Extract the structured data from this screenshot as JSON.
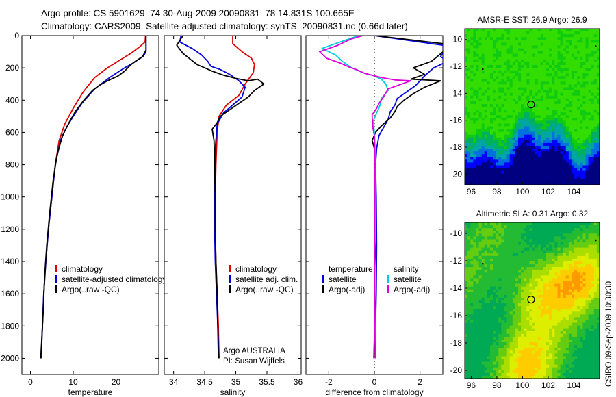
{
  "header": {
    "line1": "Argo profile: CS 5901629_74 30-Aug-2009 20090831_78 14.831S 100.665E",
    "line2": "Climatology: CARS2009. Satellite-adjusted climatology: synTS_20090831.nc (0.66d later)"
  },
  "side_label": "CSIRO 09-Sep-2009 10:30:30",
  "chart_data": [
    {
      "id": "temperature",
      "type": "line",
      "xlabel": "temperature",
      "xlim": [
        -2,
        30
      ],
      "ylim": [
        2100,
        0
      ],
      "xticks": [
        0,
        10,
        20
      ],
      "yticks": [
        0,
        200,
        400,
        600,
        800,
        1000,
        1200,
        1400,
        1600,
        1800,
        2000
      ],
      "legend": [
        "climatology",
        "satellite-adjusted climatology",
        "Argo(..raw -QC)"
      ],
      "series": [
        {
          "name": "climatology",
          "color": "#dd0000",
          "points": [
            [
              26.9,
              0
            ],
            [
              26.8,
              40
            ],
            [
              25.5,
              70
            ],
            [
              23.5,
              110
            ],
            [
              21,
              150
            ],
            [
              18,
              200
            ],
            [
              15,
              260
            ],
            [
              12.3,
              350
            ],
            [
              10,
              450
            ],
            [
              8,
              550
            ],
            [
              6.7,
              650
            ],
            [
              5.8,
              800
            ],
            [
              5,
              1000
            ],
            [
              4.2,
              1200
            ],
            [
              3.6,
              1400
            ],
            [
              3.1,
              1600
            ],
            [
              2.8,
              1800
            ],
            [
              2.5,
              2000
            ]
          ]
        },
        {
          "name": "satellite-adjusted climatology",
          "color": "#0000dd",
          "points": [
            [
              27,
              0
            ],
            [
              27,
              100
            ],
            [
              26.3,
              130
            ],
            [
              24,
              170
            ],
            [
              22,
              200
            ],
            [
              18.5,
              260
            ],
            [
              15,
              330
            ],
            [
              12,
              420
            ],
            [
              10,
              500
            ],
            [
              8.4,
              570
            ],
            [
              7,
              650
            ],
            [
              5.8,
              800
            ],
            [
              5,
              1000
            ],
            [
              4.2,
              1200
            ],
            [
              3.6,
              1400
            ],
            [
              3.1,
              1600
            ],
            [
              2.8,
              1800
            ],
            [
              2.5,
              2000
            ]
          ]
        },
        {
          "name": "Argo(..raw -QC)",
          "color": "#000000",
          "points": [
            [
              27,
              0
            ],
            [
              27,
              90
            ],
            [
              26.2,
              130
            ],
            [
              24.5,
              160
            ],
            [
              23.5,
              180
            ],
            [
              22,
              220
            ],
            [
              20.5,
              250
            ],
            [
              18,
              280
            ],
            [
              16,
              310
            ],
            [
              14.5,
              340
            ],
            [
              12.5,
              400
            ],
            [
              10.5,
              470
            ],
            [
              9,
              540
            ],
            [
              7.5,
              620
            ],
            [
              6.2,
              740
            ],
            [
              5.3,
              900
            ],
            [
              4.5,
              1100
            ],
            [
              3.8,
              1300
            ],
            [
              3.3,
              1500
            ],
            [
              3,
              1700
            ],
            [
              2.6,
              1900
            ],
            [
              2.4,
              2000
            ]
          ]
        }
      ]
    },
    {
      "id": "salinity",
      "type": "line",
      "xlabel": "salinity",
      "xlim": [
        33.85,
        36.05
      ],
      "ylim": [
        2100,
        0
      ],
      "xticks": [
        34,
        34.5,
        35,
        35.5,
        36
      ],
      "xticklabels": [
        "34",
        "34.5",
        "35",
        "35.5",
        "36"
      ],
      "legend": [
        "climatology",
        "satellite adj. clim.",
        "Argo(..raw -QC)"
      ],
      "annotations": [
        "Argo AUSTRALIA",
        "PI: Susan Wijffels"
      ],
      "series": [
        {
          "name": "climatology",
          "color": "#dd0000",
          "points": [
            [
              34.95,
              0
            ],
            [
              34.95,
              50
            ],
            [
              35.1,
              100
            ],
            [
              35.25,
              140
            ],
            [
              35.3,
              180
            ],
            [
              35.28,
              230
            ],
            [
              35.15,
              300
            ],
            [
              35.05,
              370
            ],
            [
              34.85,
              430
            ],
            [
              34.73,
              500
            ],
            [
              34.7,
              600
            ],
            [
              34.68,
              800
            ],
            [
              34.67,
              1000
            ],
            [
              34.67,
              1200
            ],
            [
              34.68,
              1400
            ],
            [
              34.7,
              1600
            ],
            [
              34.72,
              1800
            ],
            [
              34.73,
              2000
            ]
          ]
        },
        {
          "name": "satellite adj. clim.",
          "color": "#0000dd",
          "points": [
            [
              34.12,
              0
            ],
            [
              34.1,
              40
            ],
            [
              34.3,
              80
            ],
            [
              34.45,
              120
            ],
            [
              34.55,
              160
            ],
            [
              34.6,
              190
            ],
            [
              34.75,
              210
            ],
            [
              34.9,
              240
            ],
            [
              35.05,
              280
            ],
            [
              35.15,
              320
            ],
            [
              35.1,
              380
            ],
            [
              34.95,
              430
            ],
            [
              34.8,
              480
            ],
            [
              34.7,
              550
            ],
            [
              34.67,
              700
            ],
            [
              34.66,
              1000
            ],
            [
              34.66,
              1200
            ],
            [
              34.67,
              1400
            ],
            [
              34.69,
              1600
            ],
            [
              34.71,
              1800
            ],
            [
              34.73,
              2000
            ]
          ]
        },
        {
          "name": "Argo(..raw -QC)",
          "color": "#000000",
          "points": [
            [
              34.15,
              0
            ],
            [
              34.05,
              60
            ],
            [
              34.15,
              110
            ],
            [
              34.28,
              150
            ],
            [
              34.38,
              180
            ],
            [
              34.5,
              200
            ],
            [
              34.62,
              220
            ],
            [
              34.8,
              245
            ],
            [
              35,
              265
            ],
            [
              35.2,
              280
            ],
            [
              35.35,
              270
            ],
            [
              35.45,
              300
            ],
            [
              35.3,
              340
            ],
            [
              35.2,
              380
            ],
            [
              35.05,
              420
            ],
            [
              34.9,
              460
            ],
            [
              34.75,
              500
            ],
            [
              34.7,
              540
            ],
            [
              34.62,
              580
            ],
            [
              34.65,
              650
            ],
            [
              34.66,
              800
            ],
            [
              34.67,
              1000
            ],
            [
              34.67,
              1200
            ],
            [
              34.68,
              1400
            ],
            [
              34.7,
              1600
            ],
            [
              34.71,
              1800
            ],
            [
              34.72,
              2000
            ]
          ]
        }
      ]
    },
    {
      "id": "difference",
      "type": "line",
      "xlabel": "difference from climatology",
      "xlim": [
        -3,
        3
      ],
      "ylim": [
        2100,
        0
      ],
      "xticks": [
        -2,
        0,
        2
      ],
      "legend": [
        "temperature",
        "satellite",
        "Argo(-adj)",
        "salinity",
        "satellite",
        "Argo(-adj)"
      ],
      "series": [
        {
          "name": "satellite",
          "group": "temperature",
          "color": "#0000dd",
          "points": [
            [
              0,
              0
            ],
            [
              3,
              60
            ],
            [
              3.1,
              90
            ],
            [
              2.9,
              130
            ],
            [
              3.2,
              160
            ],
            [
              2.6,
              200
            ],
            [
              2.2,
              250
            ],
            [
              1.8,
              310
            ],
            [
              1.3,
              360
            ],
            [
              1,
              390
            ],
            [
              0.9,
              430
            ],
            [
              0.7,
              470
            ],
            [
              0.6,
              520
            ],
            [
              0.4,
              570
            ],
            [
              0.2,
              620
            ],
            [
              0.1,
              700
            ],
            [
              0.05,
              800
            ],
            [
              0.08,
              1000
            ],
            [
              0.1,
              1300
            ],
            [
              0.08,
              1600
            ],
            [
              0.05,
              1800
            ],
            [
              0.05,
              2000
            ]
          ]
        },
        {
          "name": "Argo(-adj)",
          "group": "temperature",
          "color": "#000000",
          "points": [
            [
              0.02,
              0
            ],
            [
              3,
              50
            ],
            [
              3.1,
              90
            ],
            [
              2.5,
              160
            ],
            [
              1.7,
              200
            ],
            [
              2.2,
              240
            ],
            [
              1.6,
              270
            ],
            [
              2.9,
              280
            ],
            [
              2.2,
              320
            ],
            [
              1.7,
              360
            ],
            [
              1.3,
              400
            ],
            [
              1,
              440
            ],
            [
              0.9,
              470
            ],
            [
              0.7,
              510
            ],
            [
              0.3,
              560
            ],
            [
              0.05,
              600
            ],
            [
              -0.1,
              650
            ],
            [
              0,
              700
            ],
            [
              0.05,
              850
            ],
            [
              0.02,
              1000
            ],
            [
              0.05,
              1300
            ],
            [
              0,
              1500
            ],
            [
              0.02,
              1700
            ],
            [
              -0.02,
              2000
            ]
          ]
        },
        {
          "name": "satellite",
          "group": "salinity",
          "color": "#00ccdd",
          "points": [
            [
              -0.7,
              0
            ],
            [
              -1.5,
              40
            ],
            [
              -2.3,
              80
            ],
            [
              -1.7,
              120
            ],
            [
              -1.4,
              160
            ],
            [
              -1,
              200
            ],
            [
              -0.5,
              230
            ],
            [
              0,
              250
            ],
            [
              0.3,
              270
            ],
            [
              0.5,
              300
            ],
            [
              0.6,
              340
            ],
            [
              0.3,
              390
            ],
            [
              0.25,
              430
            ],
            [
              0.1,
              480
            ],
            [
              -0.05,
              530
            ],
            [
              0,
              600
            ],
            [
              0.05,
              800
            ],
            [
              0.03,
              1000
            ],
            [
              0.05,
              1200
            ],
            [
              0,
              1400
            ],
            [
              0.02,
              1700
            ],
            [
              0.05,
              2000
            ]
          ]
        },
        {
          "name": "Argo(-adj)",
          "group": "salinity",
          "color": "#dd00dd",
          "points": [
            [
              -0.5,
              0
            ],
            [
              -1,
              20
            ],
            [
              -1.6,
              60
            ],
            [
              -2.4,
              100
            ],
            [
              -2.1,
              140
            ],
            [
              -1.5,
              170
            ],
            [
              -1.1,
              195
            ],
            [
              -0.8,
              210
            ],
            [
              -0.4,
              235
            ],
            [
              0.3,
              260
            ],
            [
              0.9,
              275
            ],
            [
              1.6,
              280
            ],
            [
              1.2,
              300
            ],
            [
              0.6,
              330
            ],
            [
              0.4,
              380
            ],
            [
              0.2,
              420
            ],
            [
              0.1,
              450
            ],
            [
              -0.1,
              490
            ],
            [
              -0.08,
              560
            ],
            [
              0,
              620
            ],
            [
              0.03,
              800
            ],
            [
              0.02,
              1000
            ],
            [
              0,
              1200
            ],
            [
              0.02,
              1400
            ],
            [
              0.01,
              1700
            ],
            [
              0.04,
              2000
            ]
          ]
        }
      ]
    },
    {
      "id": "sst_map",
      "type": "heatmap",
      "title": "AMSR-E SST: 26.9 Argo: 26.9",
      "xlim": [
        95.5,
        106
      ],
      "ylim": [
        -20.8,
        -9.2
      ],
      "xticks": [
        96,
        98,
        100,
        102,
        104
      ],
      "yticks": [
        -10,
        -12,
        -14,
        -16,
        -18,
        -20
      ],
      "marker": {
        "lon": 100.665,
        "lat": -14.831
      },
      "palette": [
        "#000080",
        "#0000ff",
        "#0070dd",
        "#00a6a6",
        "#00b060",
        "#10cc10",
        "#33dd00"
      ]
    },
    {
      "id": "sla_map",
      "type": "heatmap",
      "title": "Altimetric SLA: 0.31 Argo: 0.32",
      "xlim": [
        95.5,
        106
      ],
      "ylim": [
        -20.6,
        -9.2
      ],
      "xticks": [
        96,
        98,
        100,
        102,
        104
      ],
      "yticks": [
        -10,
        -12,
        -14,
        -16,
        -18,
        -20
      ],
      "marker": {
        "lon": 100.665,
        "lat": -14.831
      },
      "palette": [
        "#00aa55",
        "#22bb33",
        "#66cc11",
        "#aadd00",
        "#ddee00",
        "#ffcc00",
        "#ff9900"
      ]
    }
  ]
}
